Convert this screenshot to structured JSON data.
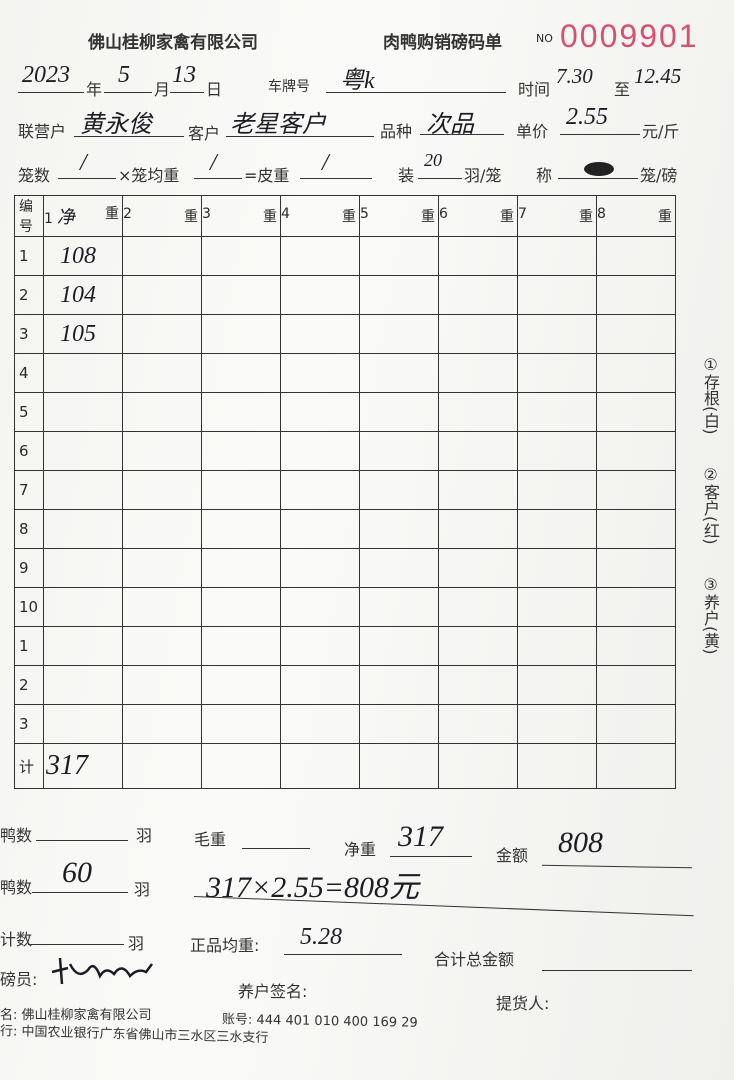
{
  "header": {
    "company": "佛山桂柳家禽有限公司",
    "form_title": "肉鸭购销磅码单",
    "no_label": "NO",
    "serial": "0009901"
  },
  "row1": {
    "year": "2023",
    "year_label": "年",
    "month": "5",
    "month_label": "月",
    "day": "13",
    "day_label": "日",
    "plate_label": "车牌号",
    "plate": "粤k",
    "time_label": "时间",
    "time_from": "7.30",
    "to_label": "至",
    "time_to": "12.45"
  },
  "row2": {
    "partner_label": "联营户",
    "partner": "黄永俊",
    "customer_label": "客户",
    "customer": "老星客户",
    "variety_label": "品种",
    "variety": "次品",
    "price_label": "单价",
    "price": "2.55",
    "price_unit": "元/斤"
  },
  "row3": {
    "cages_label": "笼数",
    "cages": "/",
    "avg_label": "×笼均重",
    "avg": "/",
    "tare_label": "=皮重",
    "tare": "/",
    "load_label": "装",
    "load": "20",
    "load_unit": "羽/笼",
    "weigh_label": "称",
    "weigh_unit": "笼/磅"
  },
  "table": {
    "headers": [
      "编号",
      "1",
      "2",
      "3",
      "4",
      "5",
      "6",
      "7",
      "8"
    ],
    "weight_label": "重",
    "col1_note": "净",
    "rows": [
      {
        "no": "1",
        "v": "108"
      },
      {
        "no": "2",
        "v": "104"
      },
      {
        "no": "3",
        "v": "105"
      },
      {
        "no": "4",
        "v": ""
      },
      {
        "no": "5",
        "v": ""
      },
      {
        "no": "6",
        "v": ""
      },
      {
        "no": "7",
        "v": ""
      },
      {
        "no": "8",
        "v": ""
      },
      {
        "no": "9",
        "v": ""
      },
      {
        "no": "10",
        "v": ""
      },
      {
        "no": "1",
        "v": ""
      },
      {
        "no": "2",
        "v": ""
      },
      {
        "no": "3",
        "v": ""
      }
    ],
    "total_label": "计",
    "total": "317"
  },
  "side": [
    "①存根(白)",
    "②客户(红)",
    "③养户(黄)"
  ],
  "bottom": {
    "duck1_label": "鸭数",
    "duck1_unit": "羽",
    "gross_label": "毛重",
    "net_label": "净重",
    "net": "317",
    "amount_label": "金额",
    "amount": "808",
    "duck2_label": "鸭数",
    "duck2": "60",
    "duck2_unit": "羽",
    "calc": "317×2.55=808元",
    "count_label": "计数",
    "count_unit": "羽",
    "avg_label": "正品均重:",
    "avg": "5.28",
    "total_amount_label": "合计总金额",
    "weigher_label": "磅员:",
    "farmer_label": "养户签名:",
    "pickup_label": "提货人:",
    "account_name": "名: 佛山桂柳家禽有限公司",
    "account_no": "账号: 444 401 010 400 169 29",
    "bank": "行: 中国农业银行广东省佛山市三水区三水支行"
  }
}
